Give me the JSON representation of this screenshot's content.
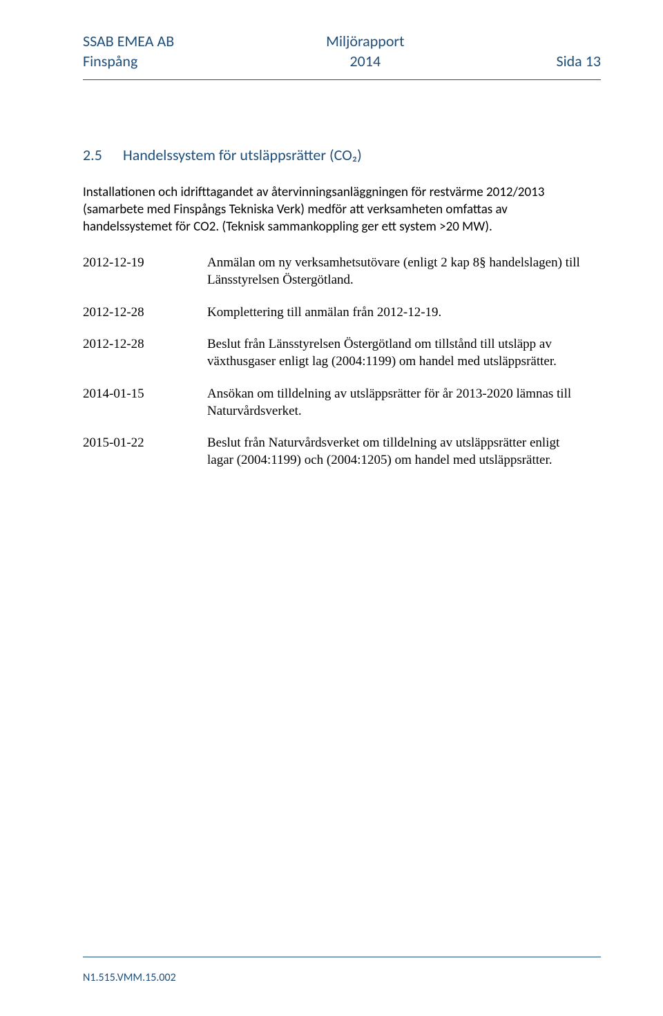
{
  "colors": {
    "accent": "#1f4e79",
    "text": "#000000",
    "background": "#ffffff"
  },
  "typography": {
    "header_font": "Calibri",
    "body_font_sans": "Calibri",
    "body_font_serif": "Times New Roman",
    "header_fontsize": 22,
    "heading_fontsize": 22,
    "body_fontsize": 19,
    "footer_fontsize": 16
  },
  "header": {
    "left_line1": "SSAB EMEA AB",
    "left_line2": "Finspång",
    "center_line1": "Miljörapport",
    "center_line2": "2014",
    "right_line2": "Sida 13"
  },
  "section": {
    "number": "2.5",
    "title": "Handelssystem för utsläppsrätter (CO₂)"
  },
  "intro_paragraph": "Installationen och idrifttagandet av återvinningsanläggningen för restvärme 2012/2013 (samarbete med Finspångs Tekniska Verk) medför att verksamheten omfattas av handelssystemet för CO2. (Teknisk sammankoppling ger ett system >20 MW).",
  "entries": [
    {
      "date": "2012-12-19",
      "desc": "Anmälan om ny verksamhetsutövare (enligt 2 kap 8§ handelslagen) till Länsstyrelsen Östergötland."
    },
    {
      "date": "2012-12-28",
      "desc": "Komplettering till anmälan från 2012-12-19."
    },
    {
      "date": "2012-12-28",
      "desc": "Beslut från Länsstyrelsen Östergötland om tillstånd till utsläpp av växthusgaser enligt lag (2004:1199) om handel med utsläppsrätter."
    },
    {
      "date": "2014-01-15",
      "desc": "Ansökan om tilldelning av utsläppsrätter för år 2013-2020 lämnas till Naturvårdsverket."
    },
    {
      "date": "2015-01-22",
      "desc": "Beslut från Naturvårdsverket om tilldelning av utsläppsrätter enligt lagar (2004:1199) och (2004:1205) om handel med utsläppsrätter."
    }
  ],
  "footer": {
    "doc_id": "N1.515.VMM.15.002"
  }
}
